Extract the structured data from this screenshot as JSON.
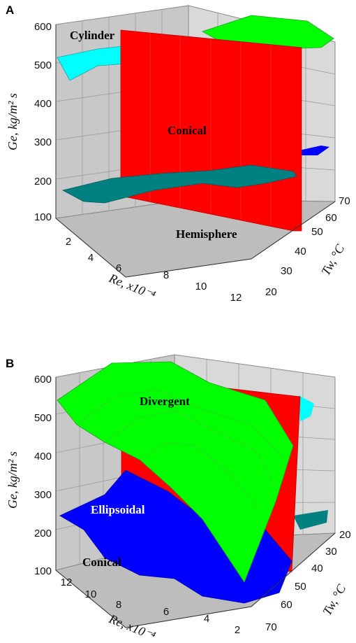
{
  "chart_data": [
    {
      "panel": "A",
      "type": "surface-3d",
      "ylabel": "Ge, kg/m² s",
      "xlabel": "Re, x10⁻⁴",
      "zlabel": "Tw, °C",
      "ylim": [
        100,
        600
      ],
      "y_ticks": [
        "100",
        "200",
        "300",
        "400",
        "500",
        "600"
      ],
      "x_ticks": [
        "2",
        "4",
        "6",
        "8",
        "10",
        "12"
      ],
      "z_ticks": [
        "20",
        "30",
        "40",
        "50",
        "60",
        "70"
      ],
      "surfaces": [
        {
          "name": "Cylinder",
          "color": "#00ffff"
        },
        {
          "name": "Conical",
          "color": "#ff0000"
        },
        {
          "name": "Hemisphere",
          "color": "#008080"
        },
        {
          "name": "",
          "color": "#00ff00"
        },
        {
          "name": "",
          "color": "#0000ff"
        }
      ],
      "grid": true
    },
    {
      "panel": "B",
      "type": "surface-3d",
      "ylabel": "Ge, kg/m² s",
      "xlabel": "Re, x10⁻⁴",
      "zlabel": "Tw, °C",
      "ylim": [
        100,
        600
      ],
      "y_ticks": [
        "100",
        "200",
        "300",
        "400",
        "500",
        "600"
      ],
      "x_ticks": [
        "12",
        "10",
        "8",
        "6",
        "4",
        "2"
      ],
      "z_ticks": [
        "20",
        "30",
        "40",
        "50",
        "60",
        "70"
      ],
      "surfaces": [
        {
          "name": "Divergent",
          "color": "#00ff00"
        },
        {
          "name": "Ellipsoidal",
          "color": "#0000ff"
        },
        {
          "name": "Conical",
          "color": "#ff0000"
        },
        {
          "name": "",
          "color": "#00ffff"
        },
        {
          "name": "",
          "color": "#008080"
        }
      ],
      "grid": true
    }
  ]
}
